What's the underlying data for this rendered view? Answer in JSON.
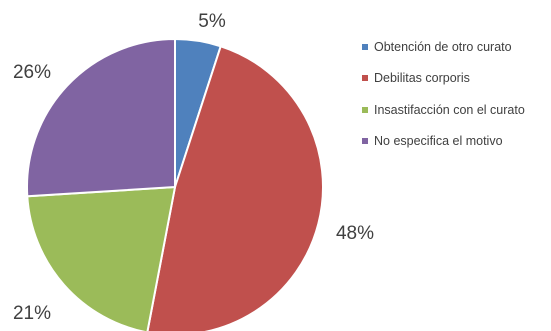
{
  "chart_data": {
    "type": "pie",
    "slices": [
      {
        "label": "Obtención de otro curato",
        "value": 5,
        "value_label": "5%",
        "color": "#4f81bd"
      },
      {
        "label": "Debilitas corporis",
        "value": 48,
        "value_label": "48%",
        "color": "#c0504d"
      },
      {
        "label": "Insastifacción con el curato",
        "value": 21,
        "value_label": "21%",
        "color": "#9bbb59"
      },
      {
        "label": "No especifica el motivo",
        "value": 26,
        "value_label": "26%",
        "color": "#8064a2"
      }
    ],
    "start_angle": "12 o'clock",
    "direction": "clockwise",
    "legend_position": "right"
  }
}
